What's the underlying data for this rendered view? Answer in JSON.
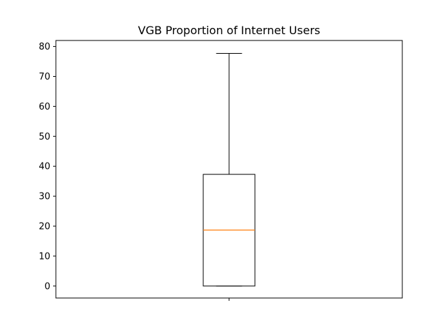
{
  "chart_data": {
    "type": "box",
    "title": "VGB Proportion of Internet Users",
    "xlabel": "",
    "ylabel": "",
    "ylim": [
      -4,
      82
    ],
    "y_ticks": [
      0,
      10,
      20,
      30,
      40,
      50,
      60,
      70,
      80
    ],
    "x_ticks": [
      ""
    ],
    "grid": false,
    "legend": "none",
    "box": {
      "whisker_low": 0,
      "q1": 0,
      "median": 18.7,
      "q3": 37.3,
      "whisker_high": 77.7
    },
    "colors": {
      "box": "#000000",
      "median": "#ff7f0e"
    }
  }
}
